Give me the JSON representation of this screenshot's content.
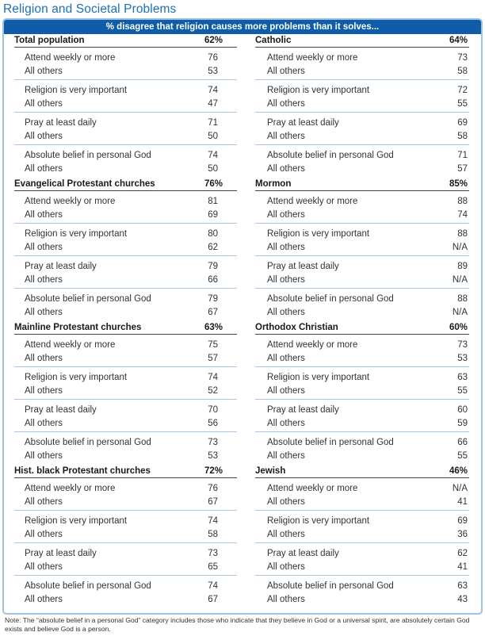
{
  "title": "Religion and Societal Problems",
  "header": "% disagree that religion causes more problems than it solves...",
  "columns": [
    {
      "sections": [
        {
          "name": "Total population",
          "value": "62%",
          "groups": [
            [
              {
                "label": "Attend weekly or more",
                "value": "76"
              },
              {
                "label": "All others",
                "value": "53"
              }
            ],
            [
              {
                "label": "Religion is very important",
                "value": "74"
              },
              {
                "label": "All others",
                "value": "47"
              }
            ],
            [
              {
                "label": "Pray at least daily",
                "value": "71"
              },
              {
                "label": "All others",
                "value": "50"
              }
            ],
            [
              {
                "label": "Absolute belief in personal God",
                "value": "74"
              },
              {
                "label": "All others",
                "value": "50"
              }
            ]
          ]
        },
        {
          "name": "Evangelical Protestant churches",
          "value": "76%",
          "groups": [
            [
              {
                "label": "Attend weekly or more",
                "value": "81"
              },
              {
                "label": "All others",
                "value": "69"
              }
            ],
            [
              {
                "label": "Religion is very important",
                "value": "80"
              },
              {
                "label": "All others",
                "value": "62"
              }
            ],
            [
              {
                "label": "Pray at least daily",
                "value": "79"
              },
              {
                "label": "All others",
                "value": "66"
              }
            ],
            [
              {
                "label": "Absolute belief in personal God",
                "value": "79"
              },
              {
                "label": "All others",
                "value": "67"
              }
            ]
          ]
        },
        {
          "name": "Mainline Protestant churches",
          "value": "63%",
          "groups": [
            [
              {
                "label": "Attend weekly or more",
                "value": "75"
              },
              {
                "label": "All others",
                "value": "57"
              }
            ],
            [
              {
                "label": "Religion is very important",
                "value": "74"
              },
              {
                "label": "All others",
                "value": "52"
              }
            ],
            [
              {
                "label": "Pray at least daily",
                "value": "70"
              },
              {
                "label": "All others",
                "value": "56"
              }
            ],
            [
              {
                "label": "Absolute belief in personal God",
                "value": "73"
              },
              {
                "label": "All others",
                "value": "53"
              }
            ]
          ]
        },
        {
          "name": "Hist. black Protestant churches",
          "value": "72%",
          "groups": [
            [
              {
                "label": "Attend weekly or more",
                "value": "76"
              },
              {
                "label": "All others",
                "value": "67"
              }
            ],
            [
              {
                "label": "Religion is very important",
                "value": "74"
              },
              {
                "label": "All others",
                "value": "58"
              }
            ],
            [
              {
                "label": "Pray at least daily",
                "value": "73"
              },
              {
                "label": "All others",
                "value": "65"
              }
            ],
            [
              {
                "label": "Absolute belief in personal God",
                "value": "74"
              },
              {
                "label": "All others",
                "value": "67"
              }
            ]
          ]
        }
      ]
    },
    {
      "sections": [
        {
          "name": "Catholic",
          "value": "64%",
          "groups": [
            [
              {
                "label": "Attend weekly or more",
                "value": "73"
              },
              {
                "label": "All others",
                "value": "58"
              }
            ],
            [
              {
                "label": "Religion is very important",
                "value": "72"
              },
              {
                "label": "All others",
                "value": "55"
              }
            ],
            [
              {
                "label": "Pray at least daily",
                "value": "69"
              },
              {
                "label": "All others",
                "value": "58"
              }
            ],
            [
              {
                "label": "Absolute belief in personal God",
                "value": "71"
              },
              {
                "label": "All others",
                "value": "57"
              }
            ]
          ]
        },
        {
          "name": "Mormon",
          "value": "85%",
          "groups": [
            [
              {
                "label": "Attend weekly or more",
                "value": "88"
              },
              {
                "label": "All others",
                "value": "74"
              }
            ],
            [
              {
                "label": "Religion is very important",
                "value": "88"
              },
              {
                "label": "All others",
                "value": "N/A"
              }
            ],
            [
              {
                "label": "Pray at least daily",
                "value": "89"
              },
              {
                "label": "All others",
                "value": "N/A"
              }
            ],
            [
              {
                "label": "Absolute belief in personal God",
                "value": "88"
              },
              {
                "label": "All others",
                "value": "N/A"
              }
            ]
          ]
        },
        {
          "name": "Orthodox Christian",
          "value": "60%",
          "groups": [
            [
              {
                "label": "Attend weekly or more",
                "value": "73"
              },
              {
                "label": "All others",
                "value": "53"
              }
            ],
            [
              {
                "label": "Religion is very important",
                "value": "63"
              },
              {
                "label": "All others",
                "value": "55"
              }
            ],
            [
              {
                "label": "Pray at least daily",
                "value": "60"
              },
              {
                "label": "All others",
                "value": "59"
              }
            ],
            [
              {
                "label": "Absolute belief in personal God",
                "value": "66"
              },
              {
                "label": "All others",
                "value": "55"
              }
            ]
          ]
        },
        {
          "name": "Jewish",
          "value": "46%",
          "groups": [
            [
              {
                "label": "Attend weekly or more",
                "value": "N/A"
              },
              {
                "label": "All others",
                "value": "41"
              }
            ],
            [
              {
                "label": "Religion is very important",
                "value": "69"
              },
              {
                "label": "All others",
                "value": "36"
              }
            ],
            [
              {
                "label": "Pray at least daily",
                "value": "62"
              },
              {
                "label": "All others",
                "value": "41"
              }
            ],
            [
              {
                "label": "Absolute belief in personal God",
                "value": "63"
              },
              {
                "label": "All others",
                "value": "43"
              }
            ]
          ]
        }
      ]
    }
  ],
  "note": "Note: The “absolute belief in a personal God” category includes those who indicate that they believe in God or a universal spirit, are absolutely certain God exists and believe God is a person."
}
